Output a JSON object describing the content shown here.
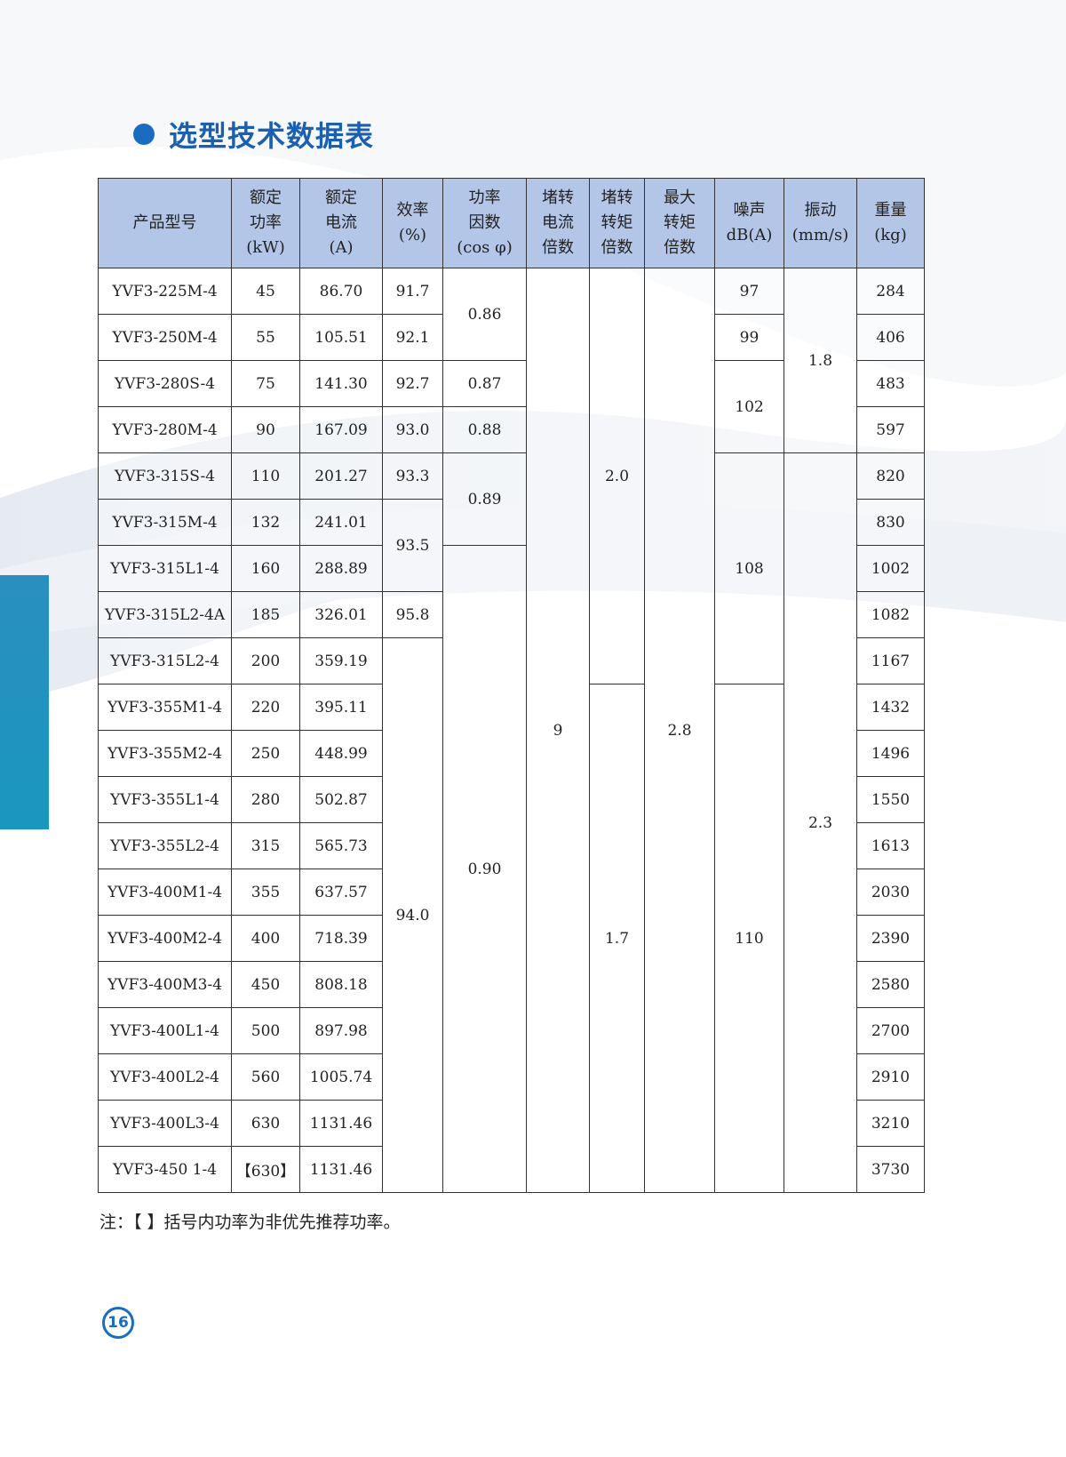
{
  "title": "选型技术数据表",
  "headers": [
    "产品型号",
    "额定\n功率\n(kW)",
    "额定\n电流\n(A)",
    "效率\n(%)",
    "功率\n因数\n(cos φ)",
    "堵转\n电流\n倍数",
    "堵转\n转矩\n倍数",
    "最大\n转矩\n倍数",
    "噪声\ndB(A)",
    "振动\n(mm/s)",
    "重量\n(kg)"
  ],
  "models": [
    "YVF3-225M-4",
    "YVF3-250M-4",
    "YVF3-280S-4",
    "YVF3-280M-4",
    "YVF3-315S-4",
    "YVF3-315M-4",
    "YVF3-315L1-4",
    "YVF3-315L2-4A",
    "YVF3-315L2-4",
    "YVF3-355M1-4",
    "YVF3-355M2-4",
    "YVF3-355L1-4",
    "YVF3-355L2-4",
    "YVF3-400M1-4",
    "YVF3-400M2-4",
    "YVF3-400M3-4",
    "YVF3-400L1-4",
    "YVF3-400L2-4",
    "YVF3-400L3-4",
    "YVF3-450 1-4"
  ],
  "power_kw": [
    "45",
    "55",
    "75",
    "90",
    "110",
    "132",
    "160",
    "185",
    "200",
    "220",
    "250",
    "280",
    "315",
    "355",
    "400",
    "450",
    "500",
    "560",
    "630",
    "【630】"
  ],
  "current_a": [
    "86.70",
    "105.51",
    "141.30",
    "167.09",
    "201.27",
    "241.01",
    "288.89",
    "326.01",
    "359.19",
    "395.11",
    "448.99",
    "502.87",
    "565.73",
    "637.57",
    "718.39",
    "808.18",
    "897.98",
    "1005.74",
    "1131.46",
    "1131.46"
  ],
  "efficiency": [
    {
      "value": "91.7",
      "rows": 1
    },
    {
      "value": "92.1",
      "rows": 1
    },
    {
      "value": "92.7",
      "rows": 1
    },
    {
      "value": "93.0",
      "rows": 1
    },
    {
      "value": "93.3",
      "rows": 1
    },
    {
      "value": "93.5",
      "rows": 2
    },
    {
      "value": "95.8",
      "rows": 1
    },
    {
      "value": "94.0",
      "rows": 12
    }
  ],
  "power_factor": [
    {
      "value": "0.86",
      "rows": 2
    },
    {
      "value": "0.87",
      "rows": 1
    },
    {
      "value": "0.88",
      "rows": 1
    },
    {
      "value": "0.89",
      "rows": 2
    },
    {
      "value": "0.90",
      "rows": 14
    }
  ],
  "locked_current": [
    {
      "value": "9",
      "rows": 20
    }
  ],
  "locked_torque": [
    {
      "value": "2.0",
      "rows": 9
    },
    {
      "value": "1.7",
      "rows": 11
    }
  ],
  "max_torque": [
    {
      "value": "2.8",
      "rows": 20
    }
  ],
  "noise": [
    {
      "value": "97",
      "rows": 1
    },
    {
      "value": "99",
      "rows": 1
    },
    {
      "value": "102",
      "rows": 2
    },
    {
      "value": "108",
      "rows": 5
    },
    {
      "value": "110",
      "rows": 11
    }
  ],
  "vibration": [
    {
      "value": "1.8",
      "rows": 4
    },
    {
      "value": "2.3",
      "rows": 16
    }
  ],
  "weight_kg": [
    "284",
    "406",
    "483",
    "597",
    "820",
    "830",
    "1002",
    "1082",
    "1167",
    "1432",
    "1496",
    "1550",
    "1613",
    "2030",
    "2390",
    "2580",
    "2700",
    "2910",
    "3210",
    "3730"
  ],
  "note": "注：【 】括号内功率为非优先推荐功率。",
  "page_number": "16",
  "colors": {
    "header_bg": "#b4c6e7",
    "accent": "#1a6cc0",
    "sidebar": "#1a97bd"
  }
}
